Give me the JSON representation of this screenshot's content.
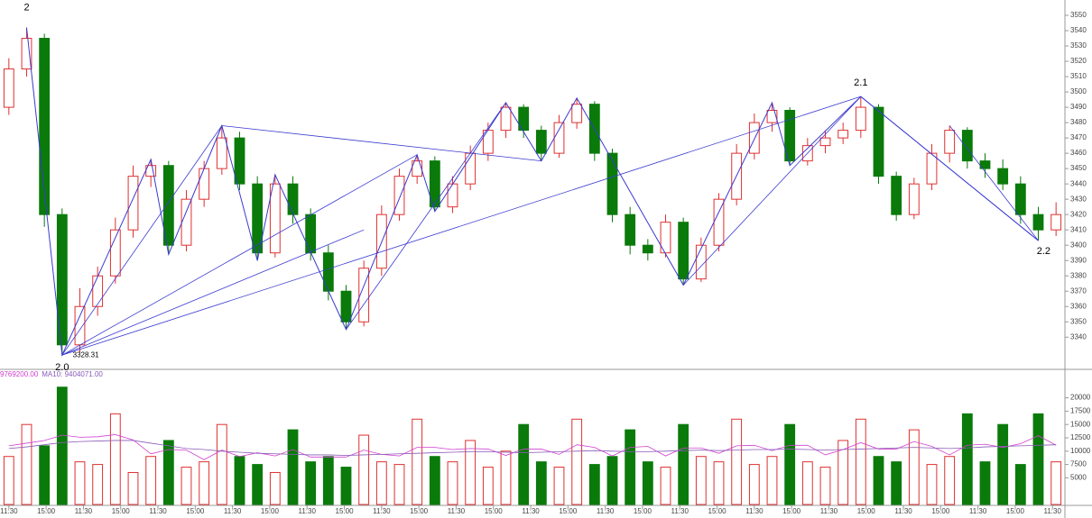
{
  "chart_data": {
    "type": "candlestick",
    "open": [
      3490,
      3515,
      3535,
      3420,
      3335,
      3360,
      3380,
      3410,
      3445,
      3452,
      3400,
      3430,
      3450,
      3470,
      3440,
      3395,
      3440,
      3420,
      3395,
      3370,
      3350,
      3385,
      3420,
      3445,
      3455,
      3425,
      3440,
      3460,
      3475,
      3490,
      3475,
      3460,
      3480,
      3492,
      3460,
      3420,
      3400,
      3395,
      3415,
      3378,
      3400,
      3430,
      3460,
      3480,
      3488,
      3455,
      3465,
      3470,
      3475,
      3490,
      3445,
      3420,
      3440,
      3460,
      3475,
      3455,
      3450,
      3440,
      3420,
      3410
    ],
    "high": [
      3522,
      3542,
      3538,
      3424,
      3372,
      3386,
      3418,
      3452,
      3456,
      3455,
      3436,
      3455,
      3478,
      3474,
      3445,
      3446,
      3445,
      3424,
      3400,
      3374,
      3390,
      3426,
      3450,
      3459,
      3458,
      3445,
      3465,
      3480,
      3493,
      3492,
      3478,
      3485,
      3496,
      3494,
      3463,
      3425,
      3404,
      3420,
      3418,
      3405,
      3434,
      3466,
      3486,
      3493,
      3490,
      3470,
      3475,
      3480,
      3497,
      3492,
      3448,
      3444,
      3466,
      3478,
      3477,
      3460,
      3456,
      3445,
      3425,
      3428
    ],
    "low": [
      3485,
      3510,
      3412,
      3328,
      3330,
      3354,
      3375,
      3405,
      3438,
      3394,
      3396,
      3425,
      3446,
      3436,
      3390,
      3392,
      3414,
      3390,
      3364,
      3345,
      3347,
      3380,
      3416,
      3440,
      3422,
      3421,
      3436,
      3455,
      3470,
      3470,
      3455,
      3457,
      3476,
      3455,
      3415,
      3394,
      3390,
      3392,
      3374,
      3376,
      3396,
      3426,
      3456,
      3474,
      3452,
      3452,
      3460,
      3466,
      3470,
      3440,
      3416,
      3417,
      3436,
      3454,
      3450,
      3444,
      3436,
      3414,
      3403,
      3406
    ],
    "close": [
      3515,
      3535,
      3420,
      3335,
      3360,
      3380,
      3410,
      3445,
      3452,
      3400,
      3430,
      3450,
      3470,
      3440,
      3395,
      3440,
      3420,
      3395,
      3370,
      3350,
      3385,
      3420,
      3445,
      3455,
      3425,
      3440,
      3460,
      3475,
      3490,
      3475,
      3460,
      3480,
      3492,
      3460,
      3420,
      3400,
      3395,
      3415,
      3378,
      3400,
      3430,
      3460,
      3480,
      3488,
      3455,
      3465,
      3470,
      3475,
      3490,
      3445,
      3420,
      3440,
      3460,
      3475,
      3455,
      3450,
      3440,
      3420,
      3410,
      3420
    ],
    "ylim": [
      3319,
      3560
    ],
    "yticks": [
      3340,
      3350,
      3360,
      3370,
      3380,
      3390,
      3400,
      3410,
      3420,
      3430,
      3440,
      3450,
      3460,
      3470,
      3480,
      3490,
      3500,
      3510,
      3520,
      3530,
      3540,
      3550
    ],
    "up_color": "#e03030",
    "down_color": "#0a7a0a",
    "line_color": "#3a3ad0",
    "zigzag": [
      [
        1,
        3542
      ],
      [
        3,
        3328.31
      ],
      [
        8,
        3456
      ],
      [
        9,
        3394
      ],
      [
        12,
        3478
      ],
      [
        14,
        3390
      ],
      [
        15,
        3446
      ],
      [
        19,
        3345
      ],
      [
        23,
        3459
      ],
      [
        24,
        3422
      ],
      [
        28,
        3493
      ],
      [
        30,
        3455
      ],
      [
        32,
        3496
      ],
      [
        38,
        3374
      ],
      [
        43,
        3493
      ],
      [
        44,
        3452
      ],
      [
        48,
        3497
      ],
      [
        58,
        3403
      ]
    ],
    "lines": [
      [
        3,
        3328.31,
        12,
        3478
      ],
      [
        3,
        3328.31,
        23,
        3459
      ],
      [
        3,
        3328.31,
        48,
        3497
      ],
      [
        3,
        3328.31,
        20,
        3410
      ],
      [
        12,
        3478,
        30,
        3455
      ],
      [
        19,
        3345,
        28,
        3493
      ],
      [
        38,
        3374,
        48,
        3497
      ],
      [
        48,
        3497,
        58,
        3403
      ],
      [
        53,
        3478,
        58,
        3403
      ]
    ],
    "annotations": [
      {
        "text": "2",
        "i": 1,
        "price": 3555
      },
      {
        "text": "2.0",
        "i": 3,
        "price": 3320
      },
      {
        "text": "2.1",
        "i": 48,
        "price": 3506
      },
      {
        "text": "2.2",
        "i": 58.3,
        "price": 3396
      }
    ],
    "low_label": {
      "text": "3328.31",
      "i": 3.6,
      "price": 3328.31
    },
    "volume": {
      "values": [
        9000,
        15000,
        11000,
        22000,
        8000,
        7500,
        17000,
        6000,
        9000,
        12000,
        7000,
        8000,
        15000,
        9000,
        7500,
        6000,
        14000,
        8000,
        9000,
        7000,
        13000,
        8000,
        7500,
        16000,
        9000,
        8000,
        12000,
        7000,
        10000,
        15000,
        8000,
        7000,
        16000,
        7500,
        9000,
        14000,
        8000,
        7000,
        15000,
        9000,
        8000,
        16000,
        7500,
        9000,
        15000,
        8000,
        7000,
        12000,
        16000,
        9000,
        8000,
        14000,
        7500,
        9000,
        17000,
        8000,
        15000,
        7500,
        17000,
        8000
      ],
      "ylim": [
        0,
        25000
      ],
      "yticks": [
        5000,
        7500,
        10000,
        12500,
        15000,
        17500,
        20000
      ],
      "series": [
        {
          "name": "9769200.00",
          "color": "#d040d0",
          "values": [
            11000,
            11500,
            12000,
            13000,
            12600,
            12700,
            13100,
            12100,
            9500,
            10300,
            10200,
            8400,
            10200,
            9000,
            9700,
            9100,
            10300,
            8900,
            8900,
            8900,
            10200,
            9400,
            9100,
            10700,
            10700,
            10300,
            10500,
            10400,
            9200,
            10400,
            10400,
            9400,
            11200,
            10700,
            9100,
            10700,
            10900,
            9100,
            10600,
            10600,
            9600,
            11000,
            11100,
            10100,
            11100,
            11100,
            9300,
            10300,
            11600,
            10400,
            10400,
            11800,
            10900,
            9300,
            11100,
            11300,
            10700,
            11400,
            12900,
            11100
          ]
        },
        {
          "name": "MA10: 9404071.00",
          "color": "#8a5ab8",
          "values": [
            10500,
            10800,
            11200,
            11600,
            11800,
            11900,
            12000,
            12000,
            11500,
            11000,
            10500,
            10300,
            10000,
            9800,
            9600,
            9500,
            9400,
            9300,
            9300,
            9200,
            9300,
            9400,
            9500,
            9600,
            9700,
            9800,
            9900,
            9900,
            9800,
            9700,
            9800,
            9900,
            10000,
            10100,
            10000,
            9900,
            9900,
            10000,
            10100,
            10200,
            10100,
            10200,
            10300,
            10300,
            10400,
            10300,
            10200,
            10300,
            10400,
            10500,
            10600,
            10700,
            10600,
            10500,
            10600,
            10800,
            10900,
            11000,
            11100,
            11200
          ]
        }
      ]
    },
    "xticks": [
      {
        "value": 0,
        "label": "11:30"
      },
      {
        "value": 2.1,
        "label": "15:00"
      },
      {
        "value": 4.2,
        "label": "11:30"
      },
      {
        "value": 6.3,
        "label": "15:00"
      },
      {
        "value": 8.4,
        "label": "11:30"
      },
      {
        "value": 10.5,
        "label": "15:00"
      },
      {
        "value": 12.6,
        "label": "11:30"
      },
      {
        "value": 14.7,
        "label": "15:00"
      },
      {
        "value": 16.8,
        "label": "11:30"
      },
      {
        "value": 18.9,
        "label": "15:00"
      },
      {
        "value": 21,
        "label": "11:30"
      },
      {
        "value": 23.1,
        "label": "15:00"
      },
      {
        "value": 25.2,
        "label": "11:30"
      },
      {
        "value": 27.3,
        "label": "15:00"
      },
      {
        "value": 29.4,
        "label": "11:30"
      },
      {
        "value": 31.5,
        "label": "15:00"
      },
      {
        "value": 33.6,
        "label": "11:30"
      },
      {
        "value": 35.7,
        "label": "15:00"
      },
      {
        "value": 37.8,
        "label": "11:30"
      },
      {
        "value": 39.9,
        "label": "15:00"
      },
      {
        "value": 42,
        "label": "11:30"
      },
      {
        "value": 44.1,
        "label": "15:00"
      },
      {
        "value": 46.2,
        "label": "11:30"
      },
      {
        "value": 48.3,
        "label": "15:00"
      },
      {
        "value": 50.4,
        "label": "11:30"
      },
      {
        "value": 52.5,
        "label": "15:00"
      },
      {
        "value": 54.6,
        "label": "11:30"
      },
      {
        "value": 56.7,
        "label": "15:00"
      },
      {
        "value": 58.8,
        "label": "11:30"
      }
    ]
  }
}
